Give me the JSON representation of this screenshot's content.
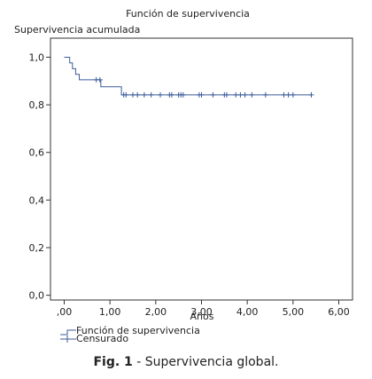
{
  "chart_data": {
    "type": "line",
    "title": "Función de supervivencia",
    "ylabel": "Supervivencia acumulada",
    "xlabel": "Años",
    "xlim": [
      -0.3,
      6.3
    ],
    "ylim": [
      -0.02,
      1.08
    ],
    "x_ticks": [
      0,
      1,
      2,
      3,
      4,
      5,
      6
    ],
    "x_tick_labels": [
      ",00",
      "1,00",
      "2,00",
      "3,00",
      "4,00",
      "5,00",
      "6,00"
    ],
    "y_ticks": [
      0,
      0.2,
      0.4,
      0.6,
      0.8,
      1.0
    ],
    "y_tick_labels": [
      "0,0",
      "0,2",
      "0,4",
      "0,6",
      "0,8",
      "1,0"
    ],
    "grid": false,
    "legend_position": "bottom-left",
    "series": [
      {
        "name": "Función de supervivencia",
        "step": true,
        "color": "#3b5b9a",
        "x": [
          0,
          0.12,
          0.18,
          0.25,
          0.33,
          0.8,
          1.25,
          5.4
        ],
        "y": [
          1.0,
          0.976,
          0.952,
          0.928,
          0.905,
          0.876,
          0.842,
          0.842
        ]
      },
      {
        "name": "Censurado",
        "marker": "plus",
        "color": "#3b5b9a",
        "x": [
          0.7,
          0.78,
          1.3,
          1.35,
          1.5,
          1.6,
          1.75,
          1.9,
          2.1,
          2.3,
          2.35,
          2.5,
          2.55,
          2.6,
          2.95,
          3.0,
          3.25,
          3.5,
          3.55,
          3.75,
          3.85,
          3.95,
          4.1,
          4.4,
          4.8,
          4.9,
          5.0,
          5.4
        ],
        "y": [
          0.905,
          0.905,
          0.842,
          0.842,
          0.842,
          0.842,
          0.842,
          0.842,
          0.842,
          0.842,
          0.842,
          0.842,
          0.842,
          0.842,
          0.842,
          0.842,
          0.842,
          0.842,
          0.842,
          0.842,
          0.842,
          0.842,
          0.842,
          0.842,
          0.842,
          0.842,
          0.842,
          0.842
        ]
      }
    ]
  },
  "caption": {
    "label": "Fig. 1",
    "text": " - Supervivencia global."
  }
}
